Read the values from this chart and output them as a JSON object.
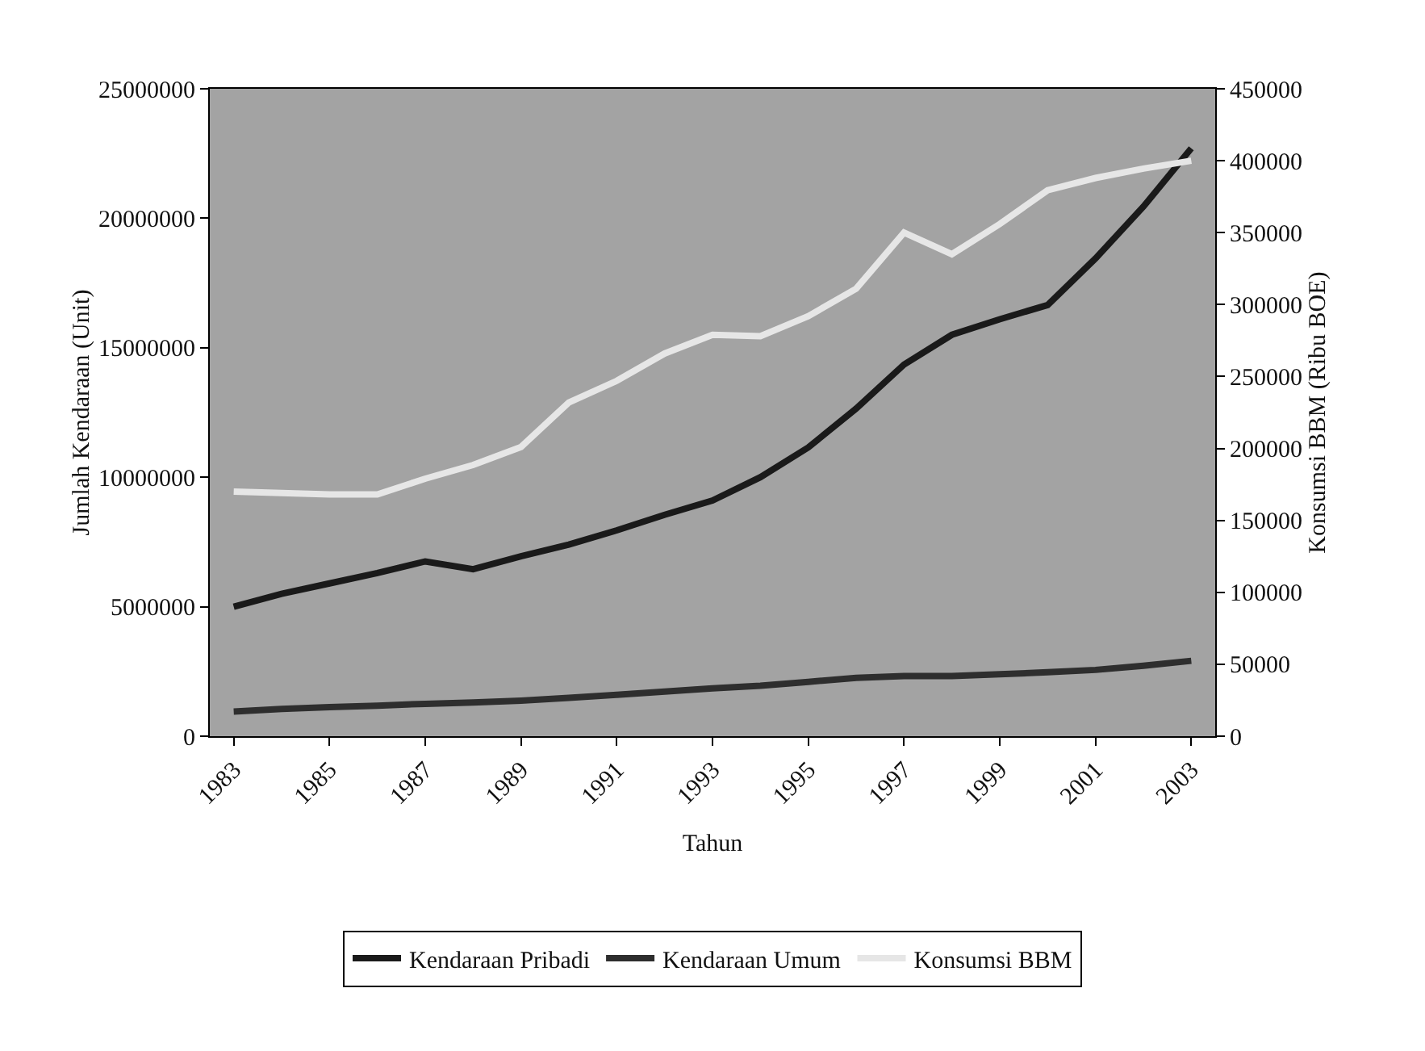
{
  "chart_data": {
    "type": "line",
    "xlabel": "Tahun",
    "ylabel": "Jumlah Kendaraan (Unit)",
    "y2label": "Konsumsi BBM (Ribu BOE)",
    "categories": [
      "1983",
      null,
      "1985",
      null,
      "1987",
      null,
      "1989",
      null,
      "1991",
      null,
      "1993",
      null,
      "1995",
      null,
      "1997",
      null,
      "1999",
      null,
      "2001",
      null,
      "2003"
    ],
    "series": [
      {
        "name": "Kendaraan Pribadi",
        "color": "#1a1a1a",
        "values": [
          5000000,
          5500000,
          5900000,
          6300000,
          6750000,
          6450000,
          6950000,
          7400000,
          7950000,
          8550000,
          9100000,
          10000000,
          11150000,
          12650000,
          14350000,
          15500000,
          16100000,
          16650000,
          18450000,
          20450000,
          22700000
        ]
      },
      {
        "name": "Kendaraan Umum",
        "color": "#2e2e2e",
        "values": [
          950000,
          1050000,
          1120000,
          1180000,
          1250000,
          1300000,
          1370000,
          1480000,
          1600000,
          1720000,
          1850000,
          1950000,
          2100000,
          2250000,
          2320000,
          2320000,
          2390000,
          2470000,
          2560000,
          2720000,
          2910000
        ]
      },
      {
        "name": "Konsumsi BBM",
        "color": "#e6e6e6",
        "axis": "y2",
        "values": [
          170000,
          169000,
          168000,
          168000,
          179000,
          188500,
          201000,
          232000,
          247000,
          266000,
          279000,
          278000,
          292000,
          311000,
          350000,
          335000,
          356000,
          379500,
          388000,
          394500,
          400000
        ]
      }
    ],
    "ylim": [
      0,
      25000000
    ],
    "yticks": [
      0,
      5000000,
      10000000,
      15000000,
      20000000,
      25000000
    ],
    "y2lim": [
      0,
      450000
    ],
    "y2ticks": [
      0,
      50000,
      100000,
      150000,
      200000,
      250000,
      300000,
      350000,
      400000,
      450000
    ],
    "legend": "bottom",
    "grid": false
  }
}
